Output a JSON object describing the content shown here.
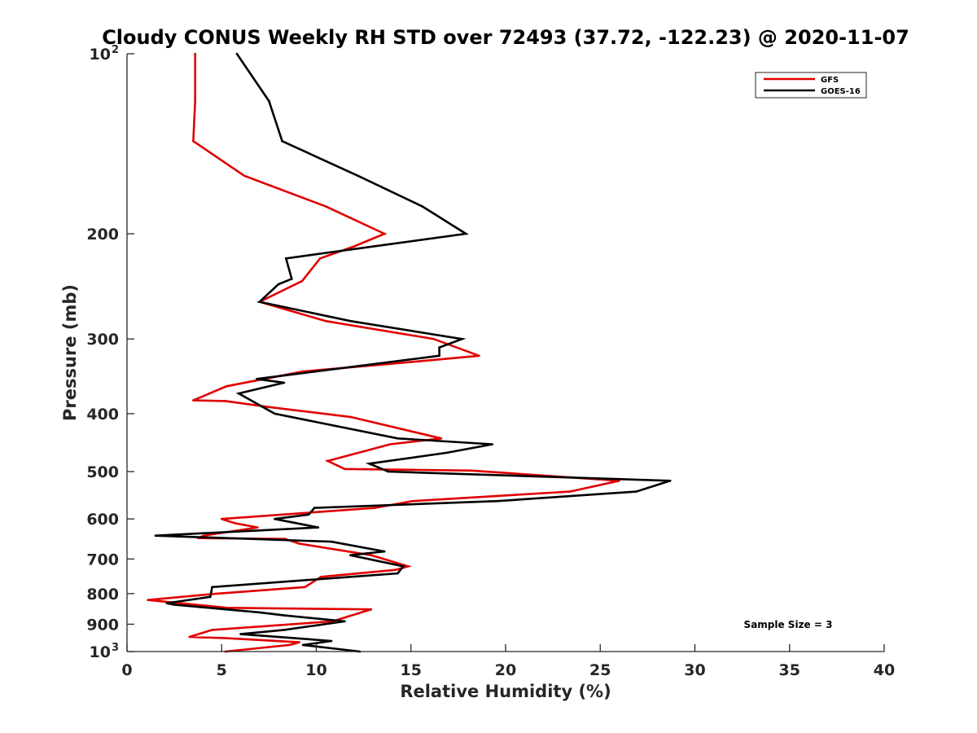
{
  "chart_data": {
    "type": "line",
    "title": "Cloudy CONUS Weekly RH STD over 72493 (37.72, -122.23) @ 2020-11-07",
    "xlabel": "Relative Humidity (%)",
    "ylabel": "Pressure (mb)",
    "xlim": [
      0,
      40
    ],
    "ylim": [
      100,
      1000
    ],
    "yscale": "log",
    "yaxis_reversed": true,
    "grid": false,
    "x_ticks": [
      {
        "value": 0,
        "label": "0"
      },
      {
        "value": 5,
        "label": "5"
      },
      {
        "value": 10,
        "label": "10"
      },
      {
        "value": 15,
        "label": "15"
      },
      {
        "value": 20,
        "label": "20"
      },
      {
        "value": 25,
        "label": "25"
      },
      {
        "value": 30,
        "label": "30"
      },
      {
        "value": 35,
        "label": "35"
      },
      {
        "value": 40,
        "label": "40"
      }
    ],
    "y_ticks": [
      {
        "value": 100,
        "label": "10",
        "sup": "2"
      },
      {
        "value": 200,
        "label": "200",
        "sup": ""
      },
      {
        "value": 300,
        "label": "300",
        "sup": ""
      },
      {
        "value": 400,
        "label": "400",
        "sup": ""
      },
      {
        "value": 500,
        "label": "500",
        "sup": ""
      },
      {
        "value": 600,
        "label": "600",
        "sup": ""
      },
      {
        "value": 700,
        "label": "700",
        "sup": ""
      },
      {
        "value": 800,
        "label": "800",
        "sup": ""
      },
      {
        "value": 900,
        "label": "900",
        "sup": ""
      },
      {
        "value": 1000,
        "label": "10",
        "sup": "3"
      }
    ],
    "legend": {
      "placement": "top-right"
    },
    "annotation": "Sample Size = 3",
    "series": [
      {
        "name": "GFS",
        "color": "#e00000",
        "points": [
          [
            100,
            3.6
          ],
          [
            120,
            3.6
          ],
          [
            140,
            3.5
          ],
          [
            160,
            6.2
          ],
          [
            180,
            10.5
          ],
          [
            200,
            13.6
          ],
          [
            210,
            12.0
          ],
          [
            220,
            10.2
          ],
          [
            240,
            9.25
          ],
          [
            260,
            7.0
          ],
          [
            280,
            10.5
          ],
          [
            300,
            16.2
          ],
          [
            320,
            18.6
          ],
          [
            330,
            14.0
          ],
          [
            340,
            9.3
          ],
          [
            360,
            5.25
          ],
          [
            380,
            3.5
          ],
          [
            381,
            5.2
          ],
          [
            390,
            7.5
          ],
          [
            405,
            11.8
          ],
          [
            440,
            16.6
          ],
          [
            450,
            13.9
          ],
          [
            480,
            10.6
          ],
          [
            495,
            11.5
          ],
          [
            498,
            18.2
          ],
          [
            518,
            26.0
          ],
          [
            540,
            23.4
          ],
          [
            560,
            15.1
          ],
          [
            575,
            13.1
          ],
          [
            600,
            5.0
          ],
          [
            610,
            5.7
          ],
          [
            620,
            6.9
          ],
          [
            640,
            4.05
          ],
          [
            646,
            3.75
          ],
          [
            648,
            8.35
          ],
          [
            660,
            9.1
          ],
          [
            690,
            12.9
          ],
          [
            720,
            14.85
          ],
          [
            730,
            14.2
          ],
          [
            750,
            10.25
          ],
          [
            780,
            9.4
          ],
          [
            800,
            4.75
          ],
          [
            820,
            1.1
          ],
          [
            845,
            5.3
          ],
          [
            850,
            12.9
          ],
          [
            890,
            10.85
          ],
          [
            920,
            4.5
          ],
          [
            945,
            3.3
          ],
          [
            950,
            5.25
          ],
          [
            965,
            9.1
          ],
          [
            975,
            8.6
          ],
          [
            1000,
            5.2
          ]
        ]
      },
      {
        "name": "GOES-16",
        "color": "#000000",
        "points": [
          [
            100,
            5.8
          ],
          [
            120,
            7.5
          ],
          [
            140,
            8.2
          ],
          [
            160,
            12.2
          ],
          [
            180,
            15.6
          ],
          [
            200,
            17.9
          ],
          [
            220,
            8.4
          ],
          [
            238,
            8.7
          ],
          [
            243,
            8.0
          ],
          [
            260,
            7.0
          ],
          [
            280,
            11.8
          ],
          [
            300,
            17.7
          ],
          [
            310,
            16.5
          ],
          [
            320,
            16.5
          ],
          [
            350,
            6.85
          ],
          [
            355,
            8.3
          ],
          [
            370,
            5.9
          ],
          [
            400,
            7.8
          ],
          [
            440,
            14.3
          ],
          [
            450,
            19.3
          ],
          [
            465,
            16.9
          ],
          [
            485,
            12.8
          ],
          [
            500,
            13.8
          ],
          [
            518,
            28.7
          ],
          [
            540,
            26.9
          ],
          [
            560,
            19.6
          ],
          [
            575,
            9.9
          ],
          [
            590,
            9.6
          ],
          [
            600,
            7.8
          ],
          [
            620,
            10.1
          ],
          [
            640,
            1.5
          ],
          [
            655,
            10.8
          ],
          [
            680,
            13.6
          ],
          [
            690,
            11.8
          ],
          [
            720,
            14.6
          ],
          [
            740,
            14.3
          ],
          [
            780,
            4.5
          ],
          [
            810,
            4.4
          ],
          [
            830,
            2.1
          ],
          [
            835,
            2.5
          ],
          [
            860,
            7.0
          ],
          [
            870,
            8.3
          ],
          [
            890,
            11.5
          ],
          [
            920,
            8.3
          ],
          [
            935,
            6.0
          ],
          [
            960,
            10.8
          ],
          [
            975,
            9.3
          ],
          [
            1000,
            12.3
          ]
        ]
      }
    ]
  }
}
